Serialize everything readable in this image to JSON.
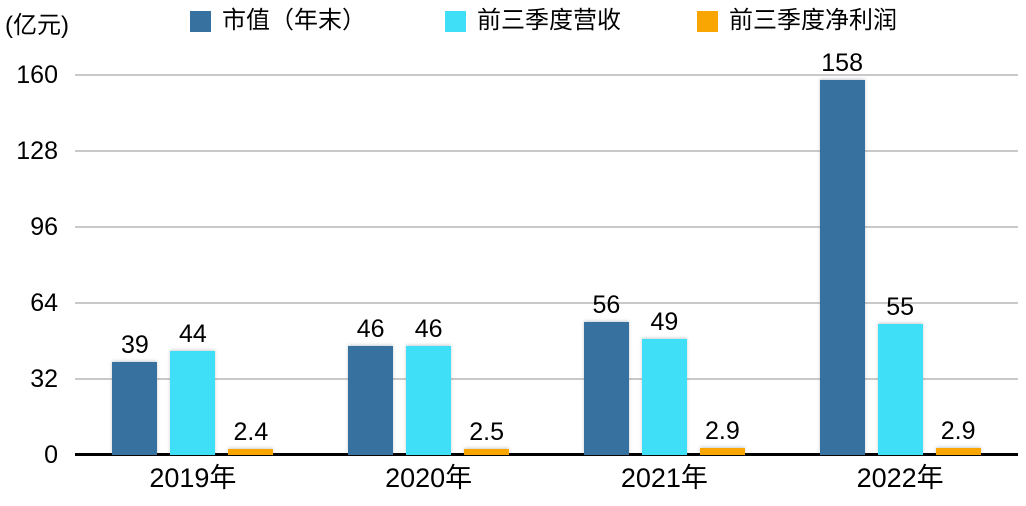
{
  "unit_label": "(亿元)",
  "legend": [
    {
      "label": "市值（年末）",
      "color": "#36719F"
    },
    {
      "label": "前三季度营收",
      "color": "#3FE0F7"
    },
    {
      "label": "前三季度净利润",
      "color": "#F9A602"
    }
  ],
  "chart_data": {
    "type": "bar",
    "title": "",
    "xlabel": "",
    "ylabel": "(亿元)",
    "categories": [
      "2019年",
      "2020年",
      "2021年",
      "2022年"
    ],
    "series": [
      {
        "name": "市值（年末）",
        "color": "#36719F",
        "values": [
          39,
          46,
          56,
          158
        ],
        "labels": [
          "39",
          "46",
          "56",
          "158"
        ]
      },
      {
        "name": "前三季度营收",
        "color": "#3FE0F7",
        "values": [
          44,
          46,
          49,
          55
        ],
        "labels": [
          "44",
          "46",
          "49",
          "55"
        ]
      },
      {
        "name": "前三季度净利润",
        "color": "#F9A602",
        "values": [
          2.4,
          2.5,
          2.9,
          2.9
        ],
        "labels": [
          "2.4",
          "2.5",
          "2.9",
          "2.9"
        ]
      }
    ],
    "yticks": [
      0,
      32,
      64,
      96,
      128,
      160
    ],
    "ylim": [
      0,
      160
    ],
    "grid": true,
    "gridline_color": "#C9C9C9",
    "axis_color": "#000000",
    "legend_position": "top"
  }
}
